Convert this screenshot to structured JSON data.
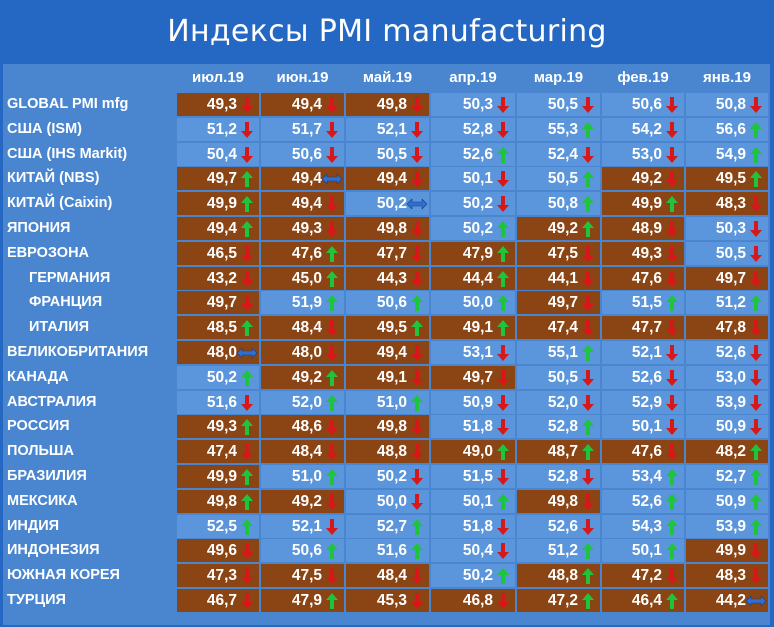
{
  "title": "Индексы PMI manufacturing",
  "chart_data": {
    "type": "table",
    "columns": [
      "июл.19",
      "июн.19",
      "май.19",
      "апр.19",
      "мар.19",
      "фев.19",
      "янв.19"
    ],
    "rows": [
      {
        "name": "GLOBAL PMI mfg",
        "indent": false,
        "values": [
          "49,3",
          "49,4",
          "49,8",
          "50,3",
          "50,5",
          "50,6",
          "50,8"
        ],
        "arrows": [
          "down",
          "down",
          "down",
          "down",
          "down",
          "down",
          "down"
        ],
        "shades": [
          "b",
          "b",
          "b",
          "l",
          "l",
          "l",
          "l"
        ]
      },
      {
        "name": "США (ISM)",
        "indent": false,
        "values": [
          "51,2",
          "51,7",
          "52,1",
          "52,8",
          "55,3",
          "54,2",
          "56,6"
        ],
        "arrows": [
          "down",
          "down",
          "down",
          "down",
          "up",
          "down",
          "up"
        ],
        "shades": [
          "l",
          "l",
          "l",
          "l",
          "l",
          "l",
          "l"
        ]
      },
      {
        "name": "США (IHS Markit)",
        "indent": false,
        "values": [
          "50,4",
          "50,6",
          "50,5",
          "52,6",
          "52,4",
          "53,0",
          "54,9"
        ],
        "arrows": [
          "down",
          "down",
          "down",
          "up",
          "down",
          "down",
          "up"
        ],
        "shades": [
          "l",
          "l",
          "l",
          "l",
          "l",
          "l",
          "l"
        ]
      },
      {
        "name": "КИТАЙ (NBS)",
        "indent": false,
        "values": [
          "49,7",
          "49,4",
          "49,4",
          "50,1",
          "50,5",
          "49,2",
          "49,5"
        ],
        "arrows": [
          "up",
          "flat",
          "down",
          "down",
          "up",
          "down",
          "up"
        ],
        "shades": [
          "b",
          "b",
          "b",
          "l",
          "l",
          "b",
          "b"
        ]
      },
      {
        "name": "КИТАЙ (Caixin)",
        "indent": false,
        "values": [
          "49,9",
          "49,4",
          "50,2",
          "50,2",
          "50,8",
          "49,9",
          "48,3"
        ],
        "arrows": [
          "up",
          "down",
          "flat",
          "down",
          "up",
          "up",
          "down"
        ],
        "shades": [
          "b",
          "b",
          "l",
          "l",
          "l",
          "b",
          "b"
        ]
      },
      {
        "name": "ЯПОНИЯ",
        "indent": false,
        "values": [
          "49,4",
          "49,3",
          "49,8",
          "50,2",
          "49,2",
          "48,9",
          "50,3"
        ],
        "arrows": [
          "up",
          "down",
          "down",
          "up",
          "up",
          "down",
          "down"
        ],
        "shades": [
          "b",
          "b",
          "b",
          "l",
          "b",
          "b",
          "l"
        ]
      },
      {
        "name": "ЕВРОЗОНА",
        "indent": false,
        "values": [
          "46,5",
          "47,6",
          "47,7",
          "47,9",
          "47,5",
          "49,3",
          "50,5"
        ],
        "arrows": [
          "down",
          "up",
          "down",
          "up",
          "down",
          "down",
          "down"
        ],
        "shades": [
          "b",
          "b",
          "b",
          "b",
          "b",
          "b",
          "l"
        ]
      },
      {
        "name": "ГЕРМАНИЯ",
        "indent": true,
        "values": [
          "43,2",
          "45,0",
          "44,3",
          "44,4",
          "44,1",
          "47,6",
          "49,7"
        ],
        "arrows": [
          "down",
          "up",
          "down",
          "up",
          "down",
          "down",
          "down"
        ],
        "shades": [
          "b",
          "b",
          "b",
          "b",
          "b",
          "b",
          "b"
        ]
      },
      {
        "name": "ФРАНЦИЯ",
        "indent": true,
        "values": [
          "49,7",
          "51,9",
          "50,6",
          "50,0",
          "49,7",
          "51,5",
          "51,2"
        ],
        "arrows": [
          "down",
          "up",
          "up",
          "up",
          "down",
          "up",
          "up"
        ],
        "shades": [
          "b",
          "l",
          "l",
          "l",
          "b",
          "l",
          "l"
        ]
      },
      {
        "name": "ИТАЛИЯ",
        "indent": true,
        "values": [
          "48,5",
          "48,4",
          "49,5",
          "49,1",
          "47,4",
          "47,7",
          "47,8"
        ],
        "arrows": [
          "up",
          "down",
          "up",
          "up",
          "down",
          "down",
          "down"
        ],
        "shades": [
          "b",
          "b",
          "b",
          "b",
          "b",
          "b",
          "b"
        ]
      },
      {
        "name": "ВЕЛИКОБРИТАНИЯ",
        "indent": false,
        "values": [
          "48,0",
          "48,0",
          "49,4",
          "53,1",
          "55,1",
          "52,1",
          "52,6"
        ],
        "arrows": [
          "flat",
          "down",
          "down",
          "down",
          "up",
          "down",
          "down"
        ],
        "shades": [
          "b",
          "b",
          "b",
          "l",
          "l",
          "l",
          "l"
        ]
      },
      {
        "name": "КАНАДА",
        "indent": false,
        "values": [
          "50,2",
          "49,2",
          "49,1",
          "49,7",
          "50,5",
          "52,6",
          "53,0"
        ],
        "arrows": [
          "up",
          "up",
          "down",
          "down",
          "down",
          "down",
          "down"
        ],
        "shades": [
          "l",
          "b",
          "b",
          "b",
          "l",
          "l",
          "l"
        ]
      },
      {
        "name": "АВСТРАЛИЯ",
        "indent": false,
        "values": [
          "51,6",
          "52,0",
          "51,0",
          "50,9",
          "52,0",
          "52,9",
          "53,9"
        ],
        "arrows": [
          "down",
          "up",
          "up",
          "down",
          "down",
          "down",
          "down"
        ],
        "shades": [
          "l",
          "l",
          "l",
          "l",
          "l",
          "l",
          "l"
        ]
      },
      {
        "name": "РОССИЯ",
        "indent": false,
        "values": [
          "49,3",
          "48,6",
          "49,8",
          "51,8",
          "52,8",
          "50,1",
          "50,9"
        ],
        "arrows": [
          "up",
          "down",
          "down",
          "down",
          "up",
          "down",
          "down"
        ],
        "shades": [
          "b",
          "b",
          "b",
          "l",
          "l",
          "l",
          "l"
        ]
      },
      {
        "name": "ПОЛЬША",
        "indent": false,
        "values": [
          "47,4",
          "48,4",
          "48,8",
          "49,0",
          "48,7",
          "47,6",
          "48,2"
        ],
        "arrows": [
          "down",
          "down",
          "down",
          "up",
          "up",
          "down",
          "up"
        ],
        "shades": [
          "b",
          "b",
          "b",
          "b",
          "b",
          "b",
          "b"
        ]
      },
      {
        "name": "БРАЗИЛИЯ",
        "indent": false,
        "values": [
          "49,9",
          "51,0",
          "50,2",
          "51,5",
          "52,8",
          "53,4",
          "52,7"
        ],
        "arrows": [
          "up",
          "up",
          "down",
          "down",
          "down",
          "up",
          "up"
        ],
        "shades": [
          "b",
          "l",
          "l",
          "l",
          "l",
          "l",
          "l"
        ]
      },
      {
        "name": "МЕКСИКА",
        "indent": false,
        "values": [
          "49,8",
          "49,2",
          "50,0",
          "50,1",
          "49,8",
          "52,6",
          "50,9"
        ],
        "arrows": [
          "up",
          "down",
          "down",
          "up",
          "down",
          "up",
          "up"
        ],
        "shades": [
          "b",
          "b",
          "l",
          "l",
          "b",
          "l",
          "l"
        ]
      },
      {
        "name": "ИНДИЯ",
        "indent": false,
        "values": [
          "52,5",
          "52,1",
          "52,7",
          "51,8",
          "52,6",
          "54,3",
          "53,9"
        ],
        "arrows": [
          "up",
          "down",
          "up",
          "down",
          "down",
          "up",
          "up"
        ],
        "shades": [
          "l",
          "l",
          "l",
          "l",
          "l",
          "l",
          "l"
        ]
      },
      {
        "name": "ИНДОНЕЗИЯ",
        "indent": false,
        "values": [
          "49,6",
          "50,6",
          "51,6",
          "50,4",
          "51,2",
          "50,1",
          "49,9"
        ],
        "arrows": [
          "down",
          "up",
          "up",
          "down",
          "up",
          "up",
          "down"
        ],
        "shades": [
          "b",
          "l",
          "l",
          "l",
          "l",
          "l",
          "b"
        ]
      },
      {
        "name": "ЮЖНАЯ КОРЕЯ",
        "indent": false,
        "values": [
          "47,3",
          "47,5",
          "48,4",
          "50,2",
          "48,8",
          "47,2",
          "48,3"
        ],
        "arrows": [
          "down",
          "down",
          "down",
          "up",
          "up",
          "down",
          "down"
        ],
        "shades": [
          "b",
          "b",
          "b",
          "l",
          "b",
          "b",
          "b"
        ]
      },
      {
        "name": "ТУРЦИЯ",
        "indent": false,
        "values": [
          "46,7",
          "47,9",
          "45,3",
          "46,8",
          "47,2",
          "46,4",
          "44,2"
        ],
        "arrows": [
          "down",
          "up",
          "down",
          "down",
          "up",
          "up",
          "flat"
        ],
        "shades": [
          "b",
          "b",
          "b",
          "b",
          "b",
          "b",
          "b"
        ]
      }
    ],
    "colors": {
      "contraction": "#8b4515",
      "expansion": "#5b96dc",
      "up": "#1ec43c",
      "down": "#d81818",
      "flat": "#2f6fd0",
      "background": "#2468c4",
      "table": "#4a86cf"
    }
  }
}
